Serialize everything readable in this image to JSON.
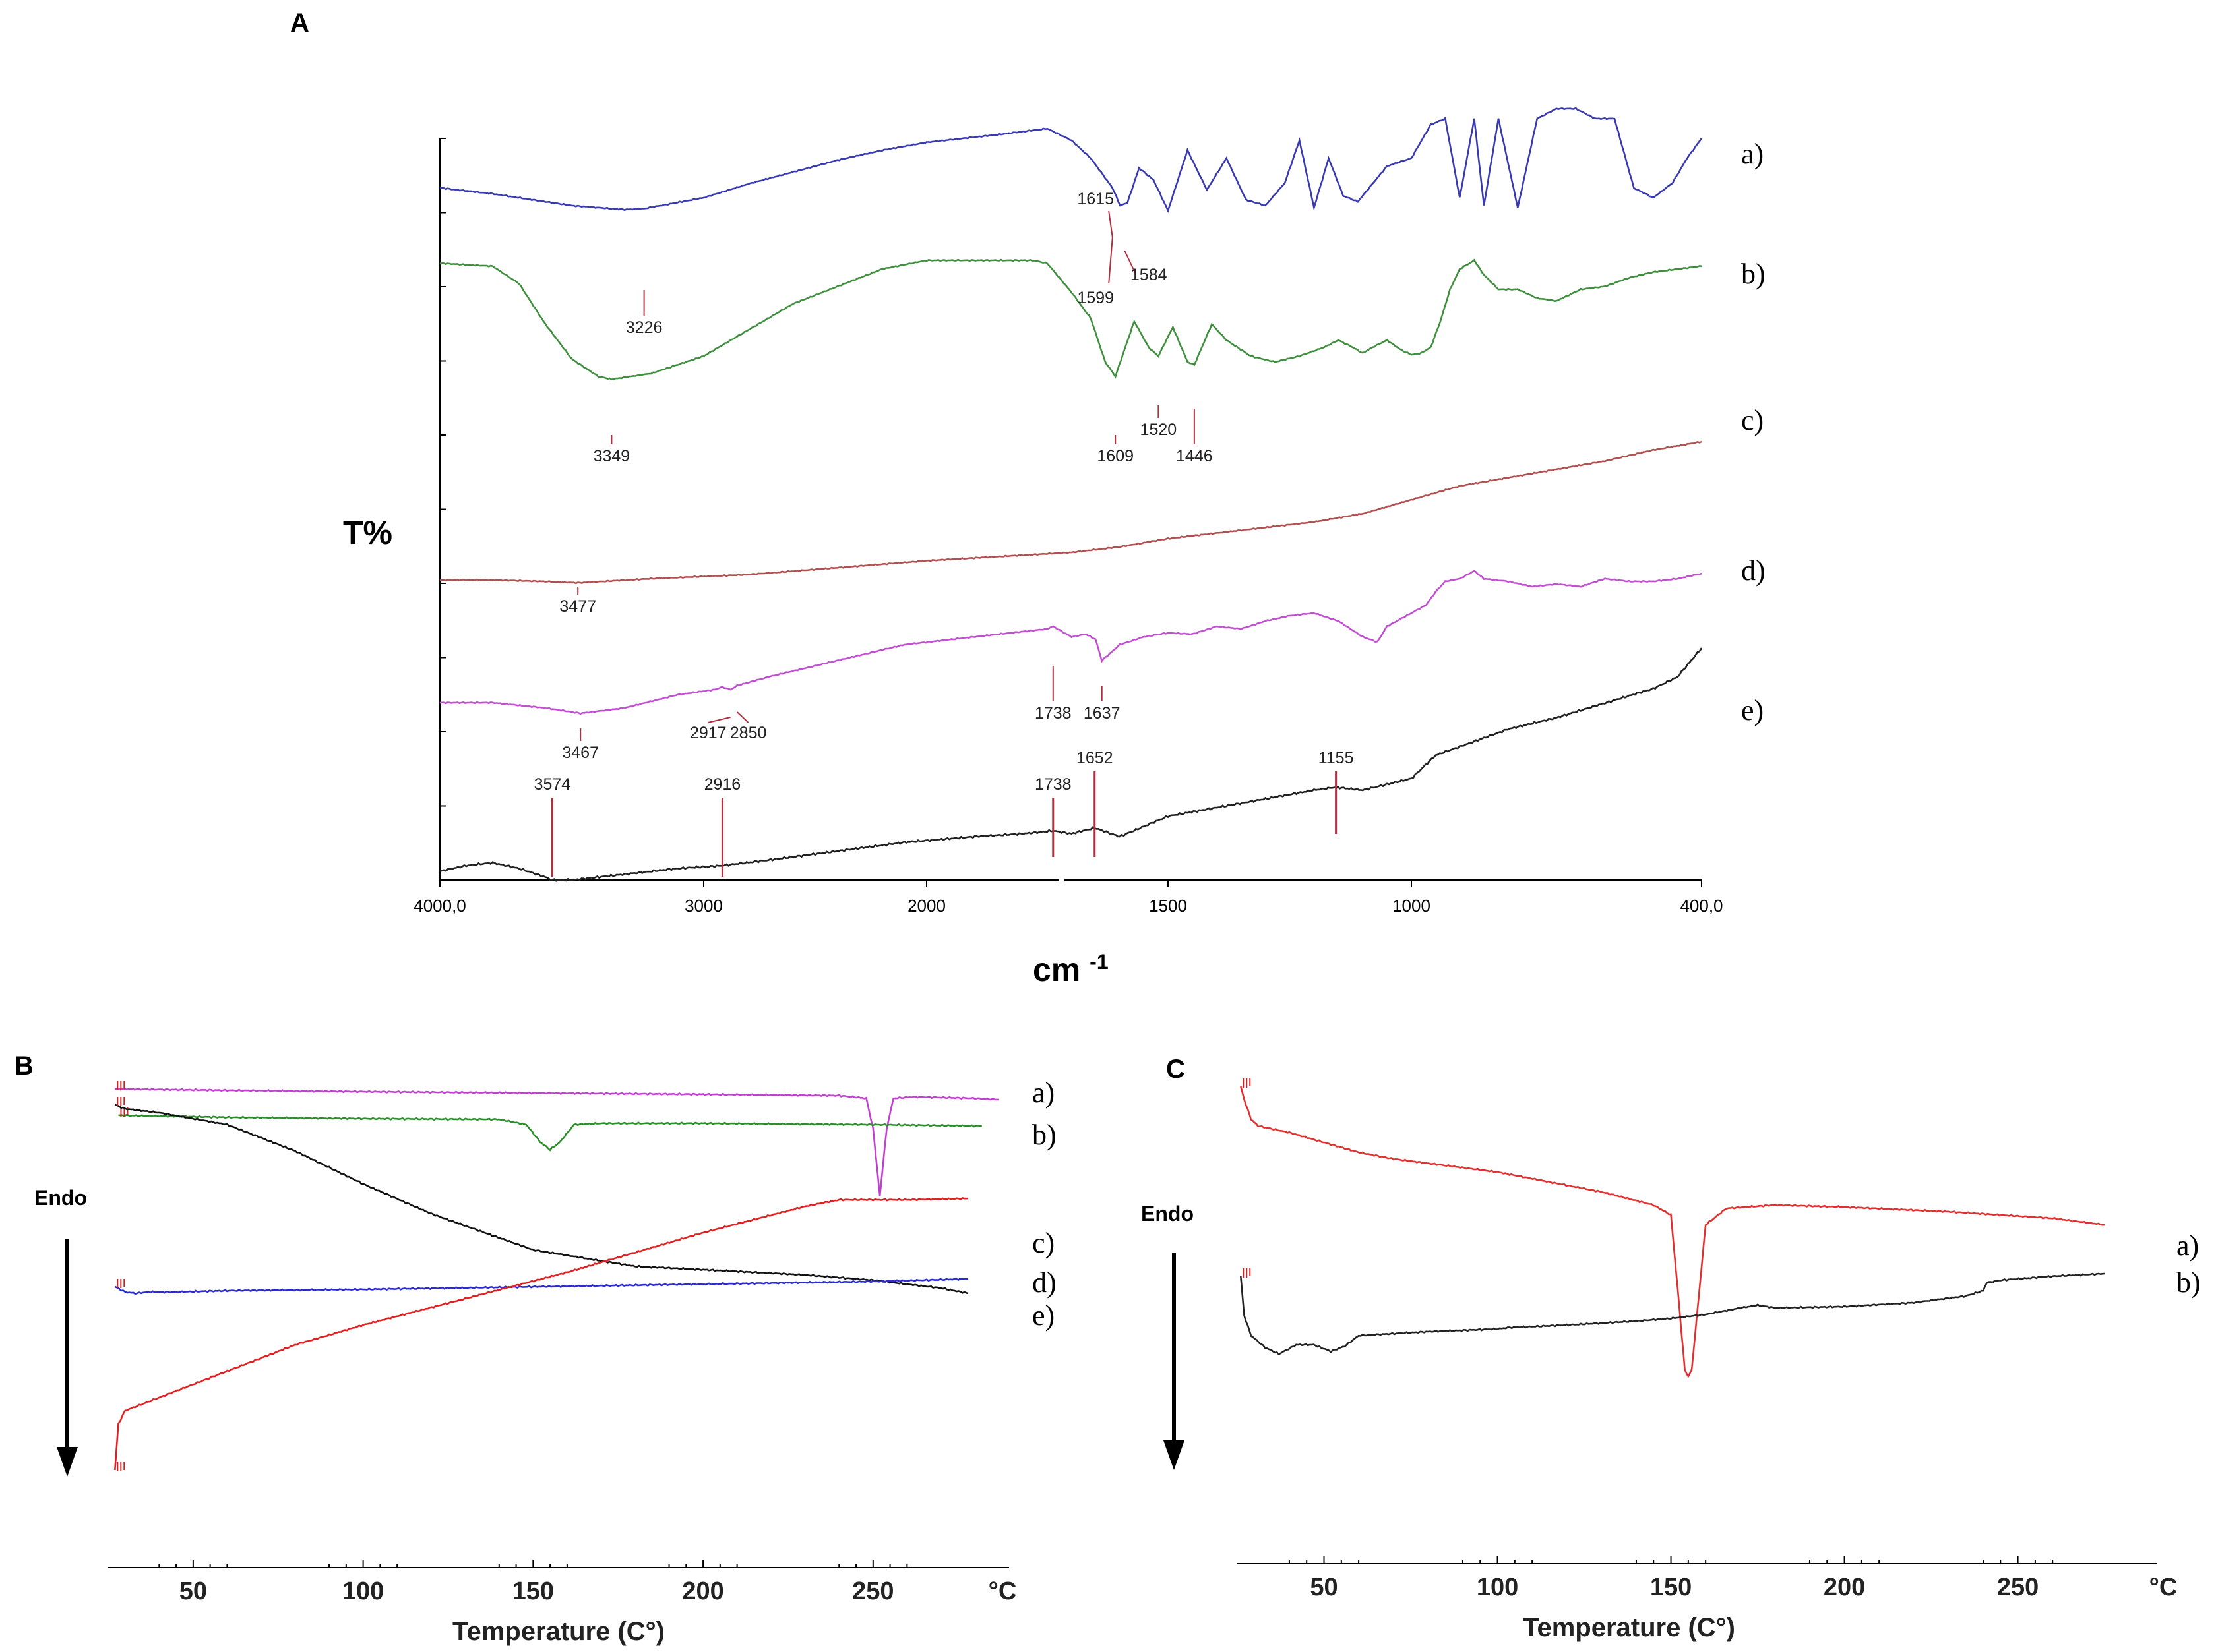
{
  "chart_data": [
    {
      "panel": "A",
      "type": "line",
      "ylabel": "T%",
      "xlabel": "cm-1",
      "x_ticks": [
        "4000,0",
        "3000",
        "2000",
        "1500",
        "1000",
        "400,0"
      ],
      "xlim": [
        4000,
        400
      ],
      "curve_labels": [
        "a)",
        "b)",
        "c)",
        "d)",
        "e)"
      ],
      "colors": [
        "#3a3ab0",
        "#3f8f3f",
        "#b05050",
        "#c050d0",
        "#202020"
      ],
      "annotations": [
        {
          "curve": "a)",
          "labels": [
            "3226",
            "1615",
            "1599",
            "1584"
          ]
        },
        {
          "curve": "b)",
          "labels": [
            "3349",
            "1609",
            "1520",
            "1446"
          ]
        },
        {
          "curve": "c)",
          "labels": [
            "3477"
          ]
        },
        {
          "curve": "d)",
          "labels": [
            "3467",
            "2917",
            "2850",
            "1738",
            "1637"
          ]
        },
        {
          "curve": "e)",
          "labels": [
            "3574",
            "2916",
            "1738",
            "1652",
            "1155"
          ]
        }
      ],
      "series": [
        {
          "label": "a)",
          "x": [
            4000,
            3800,
            3600,
            3500,
            3300,
            3226,
            3000,
            2800,
            2600,
            2400,
            2200,
            2000,
            1850,
            1750,
            1700,
            1660,
            1630,
            1615,
            1599,
            1584,
            1560,
            1530,
            1500,
            1460,
            1420,
            1380,
            1340,
            1300,
            1260,
            1230,
            1200,
            1170,
            1140,
            1110,
            1080,
            1050,
            1000,
            960,
            930,
            900,
            870,
            850,
            820,
            780,
            740,
            700,
            660,
            620,
            580,
            540,
            500,
            460,
            430,
            400
          ],
          "y": [
            0.7,
            0.64,
            0.56,
            0.52,
            0.48,
            0.49,
            0.6,
            0.74,
            0.86,
            0.98,
            1.08,
            1.16,
            1.24,
            1.3,
            1.18,
            1.0,
            0.8,
            0.7,
            0.52,
            0.55,
            0.9,
            0.78,
            0.47,
            1.08,
            0.68,
            1.0,
            0.58,
            0.52,
            0.75,
            1.18,
            0.5,
            1.0,
            0.62,
            0.56,
            0.74,
            0.92,
            1.0,
            1.34,
            1.4,
            0.6,
            1.4,
            0.52,
            1.4,
            0.5,
            1.4,
            1.5,
            1.5,
            1.4,
            1.4,
            0.7,
            0.6,
            0.75,
            1.0,
            1.2
          ]
        },
        {
          "label": "b)",
          "x": [
            4000,
            3800,
            3700,
            3600,
            3500,
            3400,
            3349,
            3200,
            3000,
            2800,
            2600,
            2400,
            2200,
            2000,
            1850,
            1780,
            1750,
            1700,
            1660,
            1630,
            1609,
            1570,
            1540,
            1520,
            1490,
            1460,
            1446,
            1410,
            1380,
            1330,
            1280,
            1230,
            1180,
            1150,
            1120,
            1100,
            1080,
            1050,
            1020,
            1000,
            980,
            960,
            940,
            920,
            900,
            870,
            850,
            820,
            780,
            740,
            700,
            650,
            600,
            550,
            500,
            450,
            400
          ],
          "y": [
            0.98,
            0.96,
            0.84,
            0.56,
            0.32,
            0.2,
            0.18,
            0.22,
            0.34,
            0.52,
            0.7,
            0.82,
            0.94,
            1.0,
            1.0,
            1.0,
            0.98,
            0.78,
            0.6,
            0.3,
            0.2,
            0.58,
            0.4,
            0.34,
            0.54,
            0.3,
            0.28,
            0.56,
            0.45,
            0.34,
            0.3,
            0.34,
            0.4,
            0.45,
            0.4,
            0.36,
            0.4,
            0.45,
            0.38,
            0.35,
            0.36,
            0.4,
            0.58,
            0.8,
            0.94,
            1.0,
            0.9,
            0.8,
            0.8,
            0.74,
            0.72,
            0.8,
            0.82,
            0.88,
            0.92,
            0.94,
            0.96
          ]
        },
        {
          "label": "c)",
          "x": [
            4000,
            3800,
            3600,
            3477,
            3200,
            2800,
            2400,
            2000,
            1800,
            1700,
            1600,
            1500,
            1400,
            1300,
            1200,
            1100,
            1000,
            900,
            800,
            700,
            600,
            500,
            400
          ],
          "y": [
            0.0,
            0.0,
            -0.01,
            -0.02,
            0.01,
            0.04,
            0.09,
            0.14,
            0.18,
            0.2,
            0.24,
            0.3,
            0.34,
            0.38,
            0.42,
            0.48,
            0.58,
            0.68,
            0.74,
            0.8,
            0.86,
            0.94,
            1.0
          ]
        },
        {
          "label": "d)",
          "x": [
            4000,
            3800,
            3600,
            3467,
            3300,
            3100,
            2950,
            2917,
            2880,
            2850,
            2700,
            2500,
            2300,
            2100,
            1900,
            1800,
            1750,
            1738,
            1720,
            1700,
            1670,
            1650,
            1637,
            1600,
            1550,
            1500,
            1450,
            1400,
            1350,
            1300,
            1250,
            1200,
            1150,
            1100,
            1070,
            1050,
            1000,
            970,
            950,
            930,
            900,
            870,
            850,
            800,
            750,
            700,
            650,
            600,
            550,
            500,
            450,
            400
          ],
          "y": [
            0.12,
            0.12,
            0.08,
            0.04,
            0.08,
            0.18,
            0.22,
            0.24,
            0.22,
            0.25,
            0.32,
            0.4,
            0.48,
            0.56,
            0.62,
            0.66,
            0.68,
            0.7,
            0.66,
            0.62,
            0.64,
            0.6,
            0.44,
            0.56,
            0.62,
            0.65,
            0.64,
            0.7,
            0.68,
            0.74,
            0.78,
            0.8,
            0.74,
            0.62,
            0.58,
            0.7,
            0.8,
            0.86,
            0.96,
            1.04,
            1.06,
            1.12,
            1.06,
            1.04,
            1.0,
            1.02,
            1.0,
            1.06,
            1.04,
            1.04,
            1.06,
            1.1
          ]
        },
        {
          "label": "e)",
          "x": [
            4000,
            3900,
            3800,
            3700,
            3600,
            3574,
            3500,
            3300,
            3100,
            2916,
            2700,
            2500,
            2300,
            2100,
            1900,
            1800,
            1738,
            1700,
            1652,
            1600,
            1500,
            1400,
            1300,
            1200,
            1155,
            1100,
            1050,
            1000,
            950,
            900,
            850,
            800,
            700,
            600,
            500,
            450,
            400
          ],
          "y": [
            0.06,
            0.1,
            0.12,
            0.08,
            0.02,
            0.0,
            0.0,
            0.04,
            0.08,
            0.1,
            0.14,
            0.18,
            0.22,
            0.26,
            0.3,
            0.32,
            0.34,
            0.32,
            0.36,
            0.3,
            0.44,
            0.5,
            0.56,
            0.62,
            0.64,
            0.62,
            0.66,
            0.7,
            0.86,
            0.92,
            0.98,
            1.04,
            1.12,
            1.22,
            1.32,
            1.4,
            1.6
          ]
        }
      ]
    },
    {
      "panel": "B",
      "type": "line",
      "xlabel": "Temperature (C°)",
      "x_ticks": [
        "50",
        "100",
        "150",
        "200",
        "250"
      ],
      "x_unit": "°C",
      "xlim": [
        25,
        290
      ],
      "endo_label": "Endo",
      "curve_labels": [
        "a)",
        "b)",
        "c)",
        "d)",
        "e)"
      ],
      "colors": [
        "#c040d0",
        "#2a8f2a",
        "#111111",
        "#2a2ad0",
        "#e02020"
      ],
      "series": [
        {
          "label": "a)",
          "x": [
            27,
            60,
            100,
            150,
            200,
            240,
            248,
            250,
            252,
            254,
            256,
            262,
            280,
            287
          ],
          "y": [
            0.0,
            -2,
            -4,
            -6,
            -8,
            -10,
            -14,
            -60,
            -162,
            -60,
            -14,
            -12,
            -14,
            -16
          ]
        },
        {
          "label": "b)",
          "x": [
            28,
            60,
            100,
            140,
            148,
            152,
            155,
            158,
            162,
            170,
            200,
            250,
            282
          ],
          "y": [
            0,
            -3,
            -5,
            -6,
            -14,
            -40,
            -52,
            -40,
            -14,
            -12,
            -12,
            -14,
            -16
          ]
        },
        {
          "label": "c)",
          "x": [
            27,
            30,
            40,
            60,
            80,
            100,
            120,
            150,
            180,
            200,
            230,
            250,
            270,
            278
          ],
          "y": [
            0,
            -6,
            -12,
            -30,
            -70,
            -120,
            -165,
            -220,
            -245,
            -250,
            -258,
            -266,
            -278,
            -286
          ]
        },
        {
          "label": "d)",
          "x": [
            27,
            30,
            33,
            37,
            45,
            60,
            100,
            150,
            200,
            250,
            278
          ],
          "y": [
            -2,
            -10,
            -12,
            -10,
            -10,
            -8,
            -6,
            -2,
            2,
            6,
            10
          ]
        },
        {
          "label": "e)",
          "x": [
            27,
            28,
            30,
            40,
            60,
            80,
            100,
            130,
            160,
            200,
            230,
            240,
            260,
            278
          ],
          "y": [
            -300,
            -230,
            -210,
            -190,
            -150,
            -110,
            -80,
            -40,
            0,
            60,
            100,
            110,
            110,
            112
          ]
        }
      ]
    },
    {
      "panel": "C",
      "type": "line",
      "xlabel": "Temperature (C°)",
      "x_ticks": [
        "50",
        "100",
        "150",
        "200",
        "250"
      ],
      "x_unit": "°C",
      "xlim": [
        25,
        290
      ],
      "endo_label": "Endo",
      "curve_labels": [
        "a)",
        "b)"
      ],
      "colors": [
        "#e03030",
        "#222222"
      ],
      "series": [
        {
          "label": "a)",
          "x": [
            26,
            27,
            29,
            31,
            40,
            60,
            70,
            100,
            130,
            145,
            150,
            152,
            154,
            155,
            156,
            158,
            160,
            166,
            180,
            200,
            230,
            260,
            275
          ],
          "y": [
            20,
            0,
            -30,
            -40,
            -50,
            -80,
            -90,
            -110,
            -140,
            -160,
            -175,
            -290,
            -410,
            -420,
            -410,
            -300,
            -190,
            -165,
            -160,
            -163,
            -170,
            -180,
            -190
          ]
        },
        {
          "label": "b)",
          "x": [
            26,
            27,
            29,
            33,
            37,
            42,
            47,
            52,
            56,
            60,
            80,
            100,
            103,
            120,
            140,
            150,
            160,
            170,
            175,
            180,
            200,
            220,
            235,
            240,
            241,
            245,
            260,
            275
          ],
          "y": [
            0,
            -60,
            -90,
            -108,
            -118,
            -104,
            -104,
            -114,
            -106,
            -90,
            -84,
            -80,
            -78,
            -74,
            -68,
            -64,
            -58,
            -48,
            -44,
            -48,
            -46,
            -40,
            -30,
            -22,
            -10,
            -6,
            0,
            4
          ]
        }
      ]
    }
  ]
}
